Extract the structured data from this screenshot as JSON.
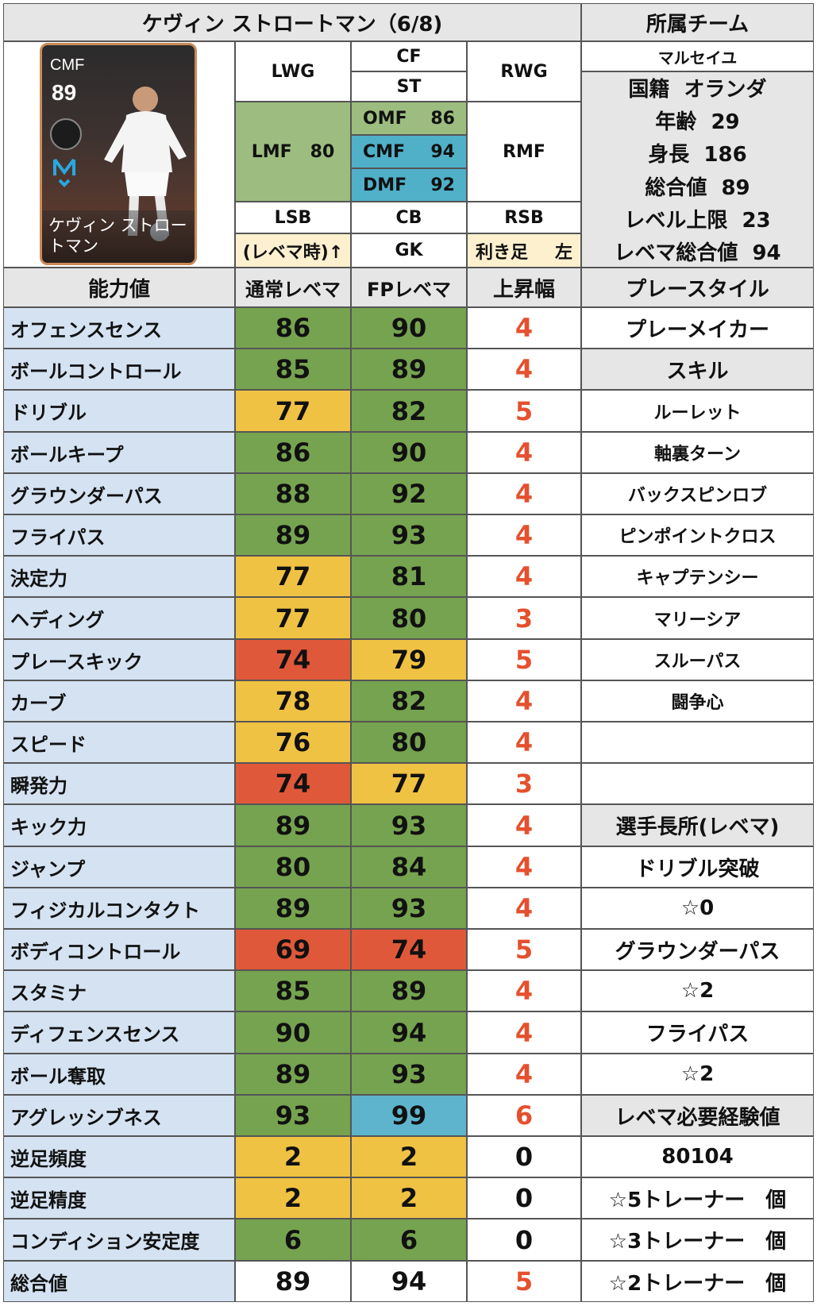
{
  "header": {
    "title": "ケヴィン ストロートマン（6/8)",
    "team_header": "所属チーム"
  },
  "card": {
    "position": "CMF",
    "rating": "89",
    "name": "ケヴィン ストロートマン",
    "badge_icon": "player-badge-icon",
    "crest_icon": "club-crest-icon"
  },
  "positions": {
    "LWG": "LWG",
    "CF": "CF",
    "ST": "ST",
    "RWG": "RWG",
    "LMF": "LMF",
    "LMF_val": "80",
    "OMF": "OMF",
    "OMF_val": "86",
    "CMF": "CMF",
    "CMF_val": "94",
    "DMF": "DMF",
    "DMF_val": "92",
    "RMF": "RMF",
    "LSB": "LSB",
    "CB": "CB",
    "RSB": "RSB",
    "note": "(レベマ時)↑",
    "GK": "GK",
    "foot_label": "利き足",
    "foot_value": "左"
  },
  "info": {
    "team": "マルセイユ",
    "nationality_label": "国籍",
    "nationality": "オランダ",
    "age_label": "年齢",
    "age": "29",
    "height_label": "身長",
    "height": "186",
    "overall_label": "総合値",
    "overall": "89",
    "level_label": "レベル上限",
    "level": "23",
    "max_overall_label": "レベマ総合値",
    "max_overall": "94"
  },
  "table": {
    "headers": [
      "能力値",
      "通常レベマ",
      "FPレベマ",
      "上昇幅",
      "プレースタイル"
    ],
    "rows": [
      {
        "label": "オフェンスセンス",
        "normal": "86",
        "fp": "90",
        "inc": "4"
      },
      {
        "label": "ボールコントロール",
        "normal": "85",
        "fp": "89",
        "inc": "4"
      },
      {
        "label": "ドリブル",
        "normal": "77",
        "fp": "82",
        "inc": "5"
      },
      {
        "label": "ボールキープ",
        "normal": "86",
        "fp": "90",
        "inc": "4"
      },
      {
        "label": "グラウンダーパス",
        "normal": "88",
        "fp": "92",
        "inc": "4"
      },
      {
        "label": "フライパス",
        "normal": "89",
        "fp": "93",
        "inc": "4"
      },
      {
        "label": "決定力",
        "normal": "77",
        "fp": "81",
        "inc": "4"
      },
      {
        "label": "ヘディング",
        "normal": "77",
        "fp": "80",
        "inc": "3"
      },
      {
        "label": "プレースキック",
        "normal": "74",
        "fp": "79",
        "inc": "5"
      },
      {
        "label": "カーブ",
        "normal": "78",
        "fp": "82",
        "inc": "4"
      },
      {
        "label": "スピード",
        "normal": "76",
        "fp": "80",
        "inc": "4"
      },
      {
        "label": "瞬発力",
        "normal": "74",
        "fp": "77",
        "inc": "3"
      },
      {
        "label": "キック力",
        "normal": "89",
        "fp": "93",
        "inc": "4"
      },
      {
        "label": "ジャンプ",
        "normal": "80",
        "fp": "84",
        "inc": "4"
      },
      {
        "label": "フィジカルコンタクト",
        "normal": "89",
        "fp": "93",
        "inc": "4"
      },
      {
        "label": "ボディコントロール",
        "normal": "69",
        "fp": "74",
        "inc": "5"
      },
      {
        "label": "スタミナ",
        "normal": "85",
        "fp": "89",
        "inc": "4"
      },
      {
        "label": "ディフェンスセンス",
        "normal": "90",
        "fp": "94",
        "inc": "4"
      },
      {
        "label": "ボール奪取",
        "normal": "89",
        "fp": "93",
        "inc": "4"
      },
      {
        "label": "アグレッシブネス",
        "normal": "93",
        "fp": "99",
        "inc": "6"
      },
      {
        "label": "逆足頻度",
        "normal": "2",
        "fp": "2",
        "inc": "0"
      },
      {
        "label": "逆足精度",
        "normal": "2",
        "fp": "2",
        "inc": "0"
      },
      {
        "label": "コンディション安定度",
        "normal": "6",
        "fp": "6",
        "inc": "0"
      },
      {
        "label": "総合値",
        "normal": "89",
        "fp": "94",
        "inc": "5"
      }
    ],
    "right": [
      "プレーメイカー",
      "スキル",
      "ルーレット",
      "軸裏ターン",
      "バックスピンロブ",
      "ピンポイントクロス",
      "キャプテンシー",
      "マリーシア",
      "スルーパス",
      "闘争心",
      "",
      "",
      "選手長所(レベマ)",
      "ドリブル突破",
      "☆0",
      "グラウンダーパス",
      "☆2",
      "フライパス",
      "☆2",
      "レベマ必要経験値",
      "80104",
      "☆5トレーナー　個",
      "☆3トレーナー　個",
      "☆2トレーナー　個"
    ]
  },
  "colors": {
    "green": "#76a34f",
    "yellow": "#f0c243",
    "red": "#e0583a",
    "cyan": "#5eb4cc",
    "increase_text": "#e5502e",
    "label_bg": "#d4e2f2",
    "header_bg": "#e6e6e6"
  }
}
